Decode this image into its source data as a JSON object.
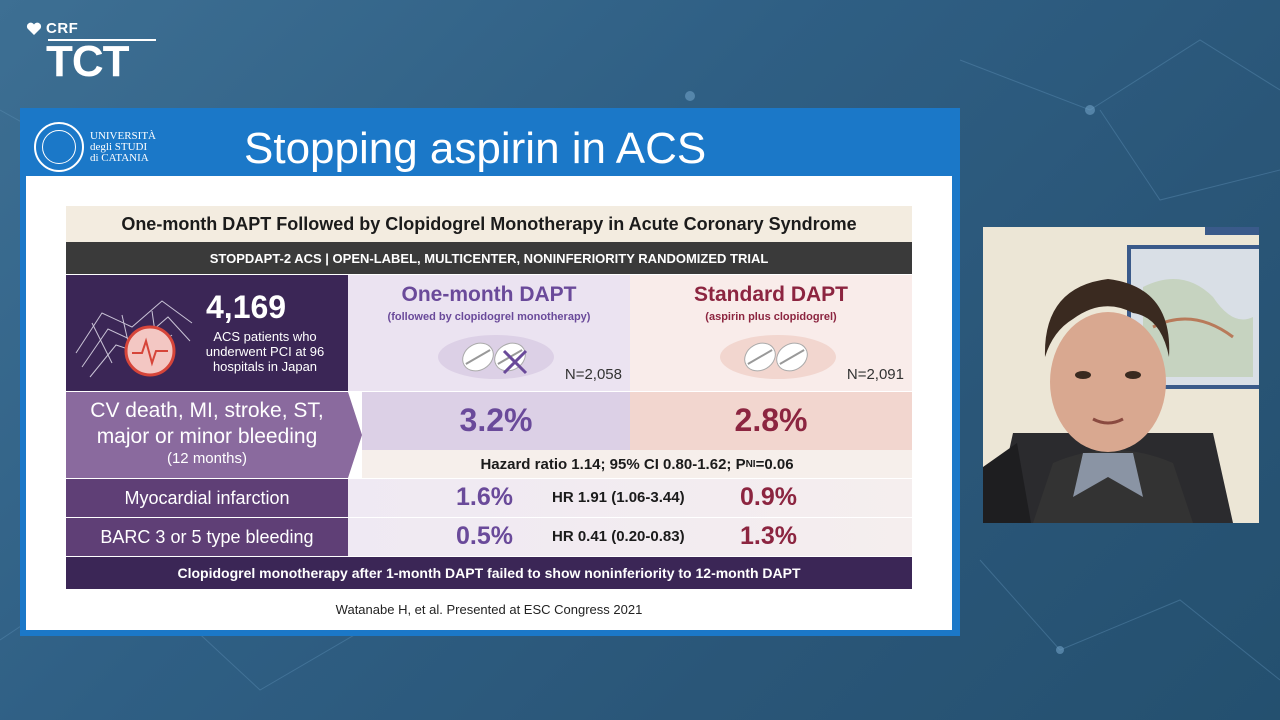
{
  "conference_logo": {
    "brand": "CRF",
    "event": "TCT"
  },
  "slide": {
    "university_name": "UNIVERSITÀ degli STUDI di CATANIA",
    "title": "Stopping aspirin in ACS",
    "subtitle": "One-month DAPT Followed by Clopidogrel Monotherapy in Acute Coronary Syndrome",
    "trial_bar": "STOPDAPT-2 ACS | OPEN-LABEL, MULTICENTER, NONINFERIORITY RANDOMIZED TRIAL",
    "population": {
      "count": "4,169",
      "description": "ACS patients who underwent PCI at 96 hospitals in Japan"
    },
    "arm_one": {
      "name": "One-month DAPT",
      "detail": "(followed by clopidogrel monotherapy)",
      "n": "N=2,058"
    },
    "arm_std": {
      "name": "Standard DAPT",
      "detail": "(aspirin plus clopidogrel)",
      "n": "N=2,091"
    },
    "primary": {
      "label_line1": "CV death, MI, stroke, ST, major or minor bleeding",
      "label_line2": "(12 months)",
      "value_one": "3.2%",
      "value_std": "2.8%",
      "hazard_text": "Hazard ratio 1.14; 95% CI 0.80-1.62; P",
      "hazard_sub": "NI",
      "hazard_tail": "=0.06"
    },
    "secondary": [
      {
        "label": "Myocardial infarction",
        "value_one": "1.6%",
        "hr": "HR 1.91 (1.06-3.44)",
        "value_std": "0.9%"
      },
      {
        "label": "BARC 3 or 5 type bleeding",
        "value_one": "0.5%",
        "hr": "HR 0.41 (0.20-0.83)",
        "value_std": "1.3%"
      }
    ],
    "conclusion": "Clopidogrel monotherapy after 1-month DAPT failed to show noninferiority to 12-month DAPT",
    "citation": "Watanabe H, et al. Presented at ESC Congress 2021"
  },
  "colors": {
    "frame_blue": "#1b78c8",
    "arm_one_purple": "#6a4a9a",
    "arm_std_red": "#8c2540",
    "dark_purple": "#3b2656"
  }
}
